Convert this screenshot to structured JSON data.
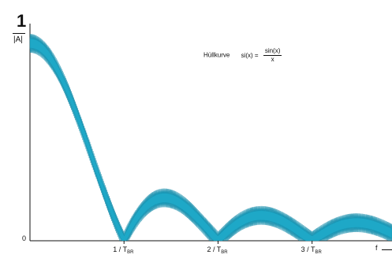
{
  "chart_data": {
    "type": "line",
    "title": "Hüllkurve",
    "formula": {
      "lhs": "si(x) =",
      "numerator": "sin(x)",
      "denominator": "x"
    },
    "ylabel_top": "1",
    "ylabel_bottom": "|A|",
    "ytick_zero": "0",
    "xlabel": "f",
    "xticks": [
      {
        "pos": 1,
        "label_main": "1 / T",
        "label_sub": "BR"
      },
      {
        "pos": 2,
        "label_main": "2 / T",
        "label_sub": "BR"
      },
      {
        "pos": 3,
        "label_main": "3 / T",
        "label_sub": "BR"
      }
    ],
    "xlim": [
      0,
      3.85
    ],
    "ylim": [
      0,
      1.1
    ],
    "grid": false,
    "series": [
      {
        "envelope": "abs(sin(pi*x)/(pi*x))",
        "band_halfwidth": 0.035,
        "values": [
          {
            "x": 0.0,
            "y": 1.0
          },
          {
            "x": 0.5,
            "y": 0.64
          },
          {
            "x": 1.0,
            "y": 0.0
          },
          {
            "x": 1.5,
            "y": 0.21
          },
          {
            "x": 2.0,
            "y": 0.0
          },
          {
            "x": 2.5,
            "y": 0.13
          },
          {
            "x": 3.0,
            "y": 0.0
          },
          {
            "x": 3.5,
            "y": 0.09
          }
        ]
      }
    ],
    "color": "#1ea8c7"
  }
}
